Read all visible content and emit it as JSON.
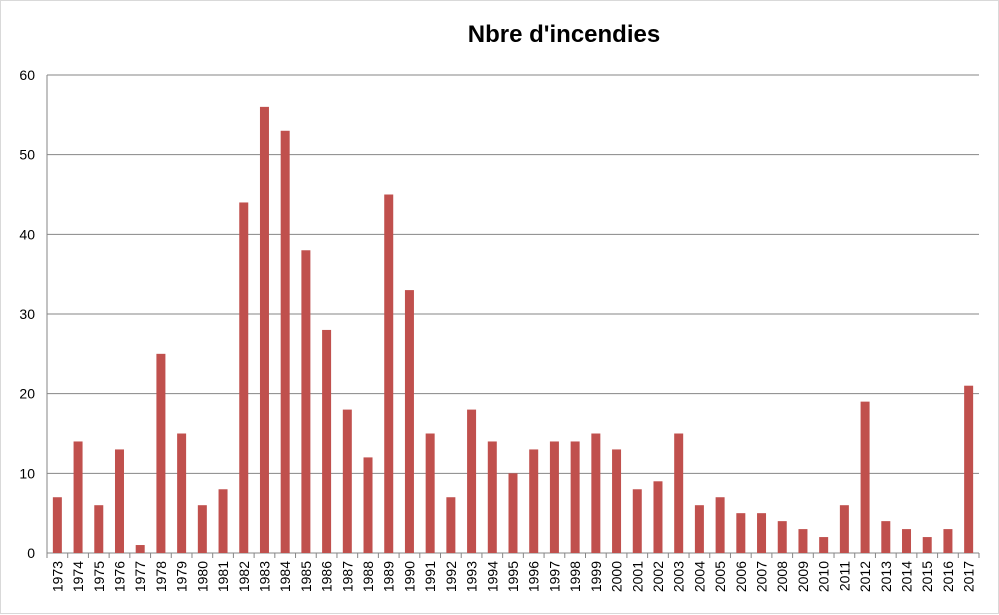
{
  "chart_data": {
    "type": "bar",
    "title": "Nbre d'incendies",
    "xlabel": "",
    "ylabel": "",
    "ylim": [
      0,
      60
    ],
    "yticks": [
      0,
      10,
      20,
      30,
      40,
      50,
      60
    ],
    "grid": true,
    "legend": "none",
    "bar_color": "#c0504d",
    "categories": [
      "1973",
      "1974",
      "1975",
      "1976",
      "1977",
      "1978",
      "1979",
      "1980",
      "1981",
      "1982",
      "1983",
      "1984",
      "1985",
      "1986",
      "1987",
      "1988",
      "1989",
      "1990",
      "1991",
      "1992",
      "1993",
      "1994",
      "1995",
      "1996",
      "1997",
      "1998",
      "1999",
      "2000",
      "2001",
      "2002",
      "2003",
      "2004",
      "2005",
      "2006",
      "2007",
      "2008",
      "2009",
      "2010",
      "2011",
      "2012",
      "2013",
      "2014",
      "2015",
      "2016",
      "2017"
    ],
    "values": [
      7,
      14,
      6,
      13,
      1,
      25,
      15,
      6,
      8,
      44,
      56,
      53,
      38,
      28,
      18,
      12,
      45,
      33,
      15,
      7,
      18,
      14,
      10,
      13,
      14,
      14,
      15,
      13,
      8,
      9,
      15,
      6,
      7,
      5,
      5,
      4,
      3,
      2,
      6,
      19,
      4,
      3,
      2,
      3,
      21
    ]
  }
}
